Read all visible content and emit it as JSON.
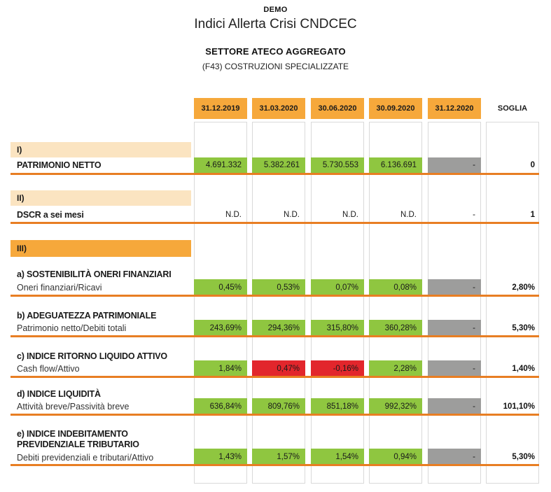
{
  "header": {
    "demo": "DEMO",
    "title": "Indici Allerta Crisi CNDCEC",
    "sector_title": "SETTORE ATECO AGGREGATO",
    "sector_subtitle": "(F43) COSTRUZIONI SPECIALIZZATE"
  },
  "colors": {
    "header_orange": "#F6A83B",
    "band_peach": "#FBE4C1",
    "cell_green": "#8FC640",
    "cell_red": "#E2262C",
    "cell_gray": "#9D9D9C",
    "separator_orange": "#E87E23",
    "column_border": "#D9D9D9"
  },
  "table": {
    "columns": [
      "31.12.2019",
      "31.03.2020",
      "30.06.2020",
      "30.09.2020",
      "31.12.2020"
    ],
    "soglia_label": "SOGLIA",
    "sections": {
      "s1": "I)",
      "s2": "II)",
      "s3": "III)"
    },
    "rows": [
      {
        "label": "PATRIMONIO NETTO",
        "cells": [
          {
            "text": "4.691.332",
            "status": "green"
          },
          {
            "text": "5.382.261",
            "status": "green"
          },
          {
            "text": "5.730.553",
            "status": "green"
          },
          {
            "text": "6.136.691",
            "status": "green"
          },
          {
            "text": "-",
            "status": "gray"
          }
        ],
        "soglia": "0"
      },
      {
        "label": "DSCR a sei mesi",
        "cells": [
          {
            "text": "N.D.",
            "status": "plain"
          },
          {
            "text": "N.D.",
            "status": "plain"
          },
          {
            "text": "N.D.",
            "status": "plain"
          },
          {
            "text": "N.D.",
            "status": "plain"
          },
          {
            "text": "-",
            "status": "plain"
          }
        ],
        "soglia": "1"
      },
      {
        "heading": "a) SOSTENIBILITÀ ONERI FINANZIARI",
        "sub": "Oneri finanziari/Ricavi",
        "cells": [
          {
            "text": "0,45%",
            "status": "green"
          },
          {
            "text": "0,53%",
            "status": "green"
          },
          {
            "text": "0,07%",
            "status": "green"
          },
          {
            "text": "0,08%",
            "status": "green"
          },
          {
            "text": "-",
            "status": "gray"
          }
        ],
        "soglia": "2,80%"
      },
      {
        "heading": "b) ADEGUATEZZA PATRIMONIALE",
        "sub": "Patrimonio netto/Debiti totali",
        "cells": [
          {
            "text": "243,69%",
            "status": "green"
          },
          {
            "text": "294,36%",
            "status": "green"
          },
          {
            "text": "315,80%",
            "status": "green"
          },
          {
            "text": "360,28%",
            "status": "green"
          },
          {
            "text": "-",
            "status": "gray"
          }
        ],
        "soglia": "5,30%"
      },
      {
        "heading": "c) INDICE RITORNO LIQUIDO ATTIVO",
        "sub": "Cash flow/Attivo",
        "cells": [
          {
            "text": "1,84%",
            "status": "green"
          },
          {
            "text": "0,47%",
            "status": "red"
          },
          {
            "text": "-0,16%",
            "status": "red"
          },
          {
            "text": "2,28%",
            "status": "green"
          },
          {
            "text": "-",
            "status": "gray"
          }
        ],
        "soglia": "1,40%"
      },
      {
        "heading": "d) INDICE LIQUIDITÀ",
        "sub": "Attività breve/Passività breve",
        "cells": [
          {
            "text": "636,84%",
            "status": "green"
          },
          {
            "text": "809,76%",
            "status": "green"
          },
          {
            "text": "851,18%",
            "status": "green"
          },
          {
            "text": "992,32%",
            "status": "green"
          },
          {
            "text": "-",
            "status": "gray"
          }
        ],
        "soglia": "101,10%"
      },
      {
        "heading": "e) INDICE INDEBITAMENTO PREVIDENZIALE TRIBUTARIO",
        "sub": "Debiti previdenziali e tributari/Attivo",
        "cells": [
          {
            "text": "1,43%",
            "status": "green"
          },
          {
            "text": "1,57%",
            "status": "green"
          },
          {
            "text": "1,54%",
            "status": "green"
          },
          {
            "text": "0,94%",
            "status": "green"
          },
          {
            "text": "-",
            "status": "gray"
          }
        ],
        "soglia": "5,30%"
      }
    ]
  }
}
